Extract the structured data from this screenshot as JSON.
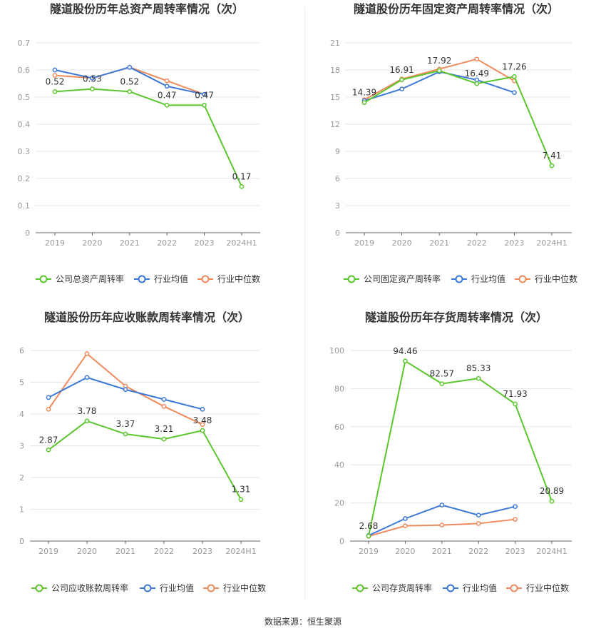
{
  "source_text": "数据来源：恒生聚源",
  "colors": {
    "company": "#5cc62e",
    "industry_avg": "#3b78d8",
    "industry_median": "#f08a5d",
    "grid": "#e5e5ee",
    "axis_text": "#999999",
    "label_text": "#333333"
  },
  "chart_data": [
    {
      "type": "line",
      "title": "隧道股份历年总资产周转率情况（次）",
      "categories": [
        "2019",
        "2020",
        "2021",
        "2022",
        "2023",
        "2024H1"
      ],
      "ylim": [
        0,
        0.7
      ],
      "yticks": [
        "0",
        "0.1",
        "0.2",
        "0.3",
        "0.4",
        "0.5",
        "0.6",
        "0.7"
      ],
      "grid": true,
      "legend_position": "bottom",
      "series": [
        {
          "name": "公司总资产周转率",
          "color_key": "company",
          "values": [
            0.52,
            0.53,
            0.52,
            0.47,
            0.47,
            0.17
          ],
          "labels": [
            "0.52",
            "0.53",
            "0.52",
            "0.47",
            "0.47",
            "0.17"
          ]
        },
        {
          "name": "行业均值",
          "color_key": "industry_avg",
          "values": [
            0.6,
            0.57,
            0.61,
            0.54,
            0.51,
            null
          ]
        },
        {
          "name": "行业中位数",
          "color_key": "industry_median",
          "values": [
            0.58,
            0.57,
            0.61,
            0.56,
            0.51,
            null
          ]
        }
      ]
    },
    {
      "type": "line",
      "title": "隧道股份历年固定资产周转率情况（次）",
      "categories": [
        "2019",
        "2020",
        "2021",
        "2022",
        "2023",
        "2024H1"
      ],
      "ylim": [
        0,
        21
      ],
      "yticks": [
        "0",
        "3",
        "6",
        "9",
        "12",
        "15",
        "18",
        "21"
      ],
      "grid": true,
      "legend_position": "bottom",
      "series": [
        {
          "name": "公司固定资产周转率",
          "color_key": "company",
          "values": [
            14.39,
            16.91,
            17.92,
            16.49,
            17.26,
            7.41
          ],
          "labels": [
            "14.39",
            "16.91",
            "17.92",
            "16.49",
            "17.26",
            "7.41"
          ]
        },
        {
          "name": "行业均值",
          "color_key": "industry_avg",
          "values": [
            14.6,
            15.9,
            17.8,
            16.9,
            15.5,
            null
          ]
        },
        {
          "name": "行业中位数",
          "color_key": "industry_median",
          "values": [
            14.7,
            17.0,
            18.1,
            19.2,
            16.8,
            null
          ]
        }
      ]
    },
    {
      "type": "line",
      "title": "隧道股份历年应收账款周转率情况（次）",
      "categories": [
        "2019",
        "2020",
        "2021",
        "2022",
        "2023",
        "2024H1"
      ],
      "ylim": [
        0,
        6
      ],
      "yticks": [
        "0",
        "1",
        "2",
        "3",
        "4",
        "5",
        "6"
      ],
      "grid": true,
      "legend_position": "bottom",
      "series": [
        {
          "name": "公司应收账款周转率",
          "color_key": "company",
          "values": [
            2.87,
            3.78,
            3.37,
            3.21,
            3.48,
            1.31
          ],
          "labels": [
            "2.87",
            "3.78",
            "3.37",
            "3.21",
            "3.48",
            "1.31"
          ]
        },
        {
          "name": "行业均值",
          "color_key": "industry_avg",
          "values": [
            4.52,
            5.15,
            4.77,
            4.46,
            4.15,
            null
          ]
        },
        {
          "name": "行业中位数",
          "color_key": "industry_median",
          "values": [
            4.15,
            5.9,
            4.88,
            4.24,
            3.67,
            null
          ]
        }
      ]
    },
    {
      "type": "line",
      "title": "隧道股份历年存货周转率情况（次）",
      "categories": [
        "2019",
        "2020",
        "2021",
        "2022",
        "2023",
        "2024H1"
      ],
      "ylim": [
        0,
        100
      ],
      "yticks": [
        "0",
        "20",
        "40",
        "60",
        "80",
        "100"
      ],
      "grid": true,
      "legend_position": "bottom",
      "series": [
        {
          "name": "公司存货周转率",
          "color_key": "company",
          "values": [
            2.68,
            94.46,
            82.57,
            85.33,
            71.93,
            20.89
          ],
          "labels": [
            "2.68",
            "94.46",
            "82.57",
            "85.33",
            "71.93",
            "20.89"
          ]
        },
        {
          "name": "行业均值",
          "color_key": "industry_avg",
          "values": [
            2.9,
            11.8,
            18.9,
            13.6,
            18.1,
            null
          ]
        },
        {
          "name": "行业中位数",
          "color_key": "industry_median",
          "values": [
            2.5,
            8.0,
            8.4,
            9.2,
            11.4,
            null
          ]
        }
      ]
    }
  ]
}
